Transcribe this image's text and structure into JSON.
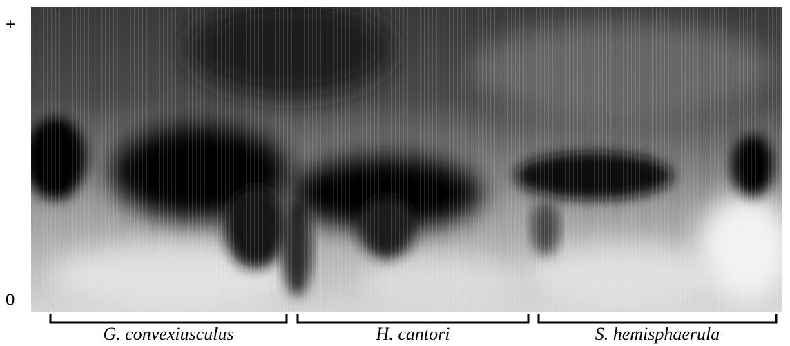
{
  "markers": {
    "top": "+",
    "bottom": "0"
  },
  "groups": [
    "G. convexiusculus",
    "H. cantori",
    "S. hemisphaerula"
  ]
}
